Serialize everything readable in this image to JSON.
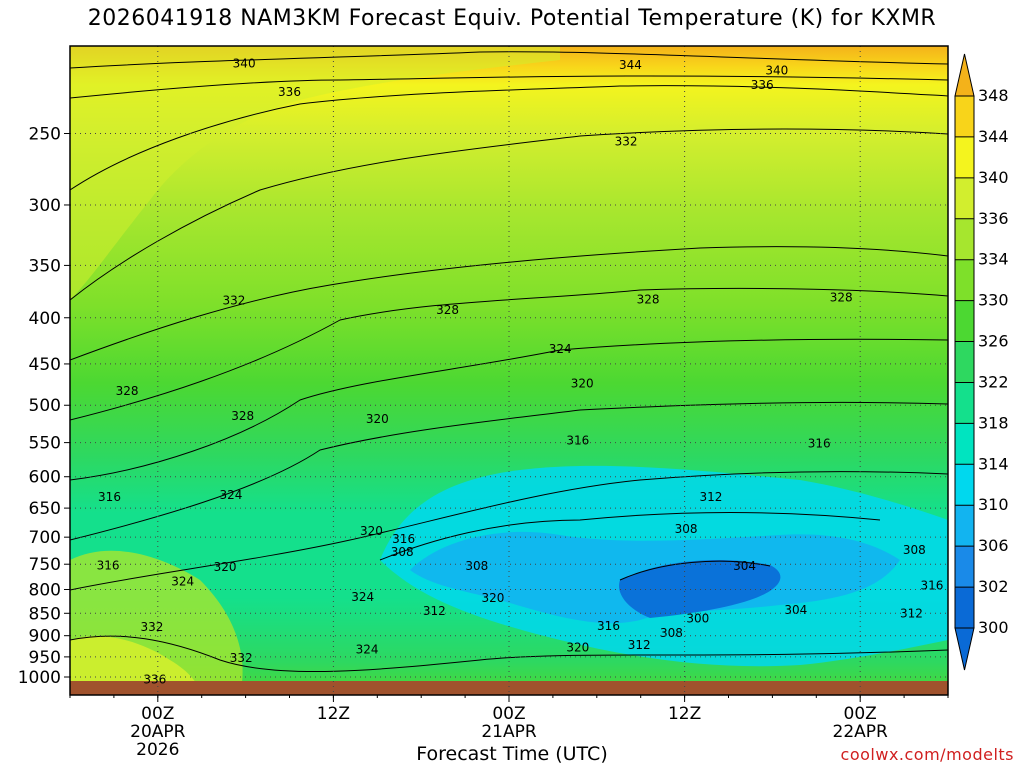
{
  "title": "2026041918 NAM3KM Forecast Equiv. Potential Temperature (K) for KXMR",
  "xlabel": "Forecast Time (UTC)",
  "credit": "coolwx.com/modelts",
  "colors": {
    "ground": "#a0522d",
    "contour_line": "#000000",
    "grid": "#444444"
  },
  "chart_data": {
    "type": "heatmap",
    "title": "2026041918 NAM3KM Forecast Equiv. Potential Temperature (K) for KXMR",
    "xlabel": "Forecast Time (UTC)",
    "ylabel": "",
    "ylim": [
      1000,
      200
    ],
    "y_scale": "log-pressure",
    "grid": true,
    "y_ticks": [
      250,
      300,
      350,
      400,
      450,
      500,
      550,
      600,
      650,
      700,
      750,
      800,
      850,
      900,
      950,
      1000
    ],
    "x_ticks": [
      {
        "hour": 6,
        "lines": [
          "00Z",
          "20APR",
          "2026"
        ]
      },
      {
        "hour": 18,
        "lines": [
          "12Z"
        ]
      },
      {
        "hour": 30,
        "lines": [
          "00Z",
          "21APR"
        ]
      },
      {
        "hour": 42,
        "lines": [
          "12Z"
        ]
      },
      {
        "hour": 54,
        "lines": [
          "00Z",
          "22APR"
        ]
      }
    ],
    "x_range_hours": [
      0,
      60
    ],
    "colorbar": {
      "levels": [
        300,
        302,
        306,
        310,
        314,
        318,
        322,
        326,
        330,
        334,
        336,
        340,
        344,
        348
      ],
      "labels": [
        "300",
        "302",
        "306",
        "310",
        "314",
        "318",
        "322",
        "326",
        "330",
        "334",
        "336",
        "340",
        "344",
        "348"
      ],
      "colors": [
        "#0a6ad6",
        "#1a8ae8",
        "#12b4f0",
        "#00d8ee",
        "#00e4c0",
        "#14e08c",
        "#2ed860",
        "#4cd832",
        "#7ee02a",
        "#a6e62e",
        "#d2ee2e",
        "#f4f41e",
        "#f8d41a",
        "#f4b21a"
      ]
    },
    "contour_labels": [
      {
        "text": "340",
        "hour": 11.9,
        "p": 209
      },
      {
        "text": "344",
        "hour": 38.3,
        "p": 210
      },
      {
        "text": "340",
        "hour": 48.3,
        "p": 213
      },
      {
        "text": "336",
        "hour": 15.0,
        "p": 225
      },
      {
        "text": "336",
        "hour": 47.3,
        "p": 221
      },
      {
        "text": "332",
        "hour": 38.0,
        "p": 255
      },
      {
        "text": "332",
        "hour": 11.2,
        "p": 383
      },
      {
        "text": "328",
        "hour": 25.8,
        "p": 392
      },
      {
        "text": "328",
        "hour": 39.5,
        "p": 382
      },
      {
        "text": "328",
        "hour": 52.7,
        "p": 380
      },
      {
        "text": "324",
        "hour": 33.5,
        "p": 433
      },
      {
        "text": "320",
        "hour": 35.0,
        "p": 473
      },
      {
        "text": "328",
        "hour": 3.9,
        "p": 482
      },
      {
        "text": "328",
        "hour": 11.8,
        "p": 514
      },
      {
        "text": "320",
        "hour": 21.0,
        "p": 518
      },
      {
        "text": "316",
        "hour": 34.7,
        "p": 547
      },
      {
        "text": "316",
        "hour": 51.2,
        "p": 551
      },
      {
        "text": "316",
        "hour": 2.7,
        "p": 632
      },
      {
        "text": "324",
        "hour": 11.0,
        "p": 629
      },
      {
        "text": "312",
        "hour": 43.8,
        "p": 632
      },
      {
        "text": "320",
        "hour": 20.6,
        "p": 689
      },
      {
        "text": "316",
        "hour": 22.8,
        "p": 703
      },
      {
        "text": "308",
        "hour": 42.1,
        "p": 686
      },
      {
        "text": "308",
        "hour": 22.7,
        "p": 727
      },
      {
        "text": "316",
        "hour": 2.6,
        "p": 752
      },
      {
        "text": "320",
        "hour": 10.6,
        "p": 755
      },
      {
        "text": "308",
        "hour": 27.8,
        "p": 753
      },
      {
        "text": "304",
        "hour": 46.1,
        "p": 753
      },
      {
        "text": "308",
        "hour": 57.7,
        "p": 723
      },
      {
        "text": "324",
        "hour": 7.7,
        "p": 784
      },
      {
        "text": "316",
        "hour": 58.9,
        "p": 792
      },
      {
        "text": "324",
        "hour": 20.0,
        "p": 815
      },
      {
        "text": "320",
        "hour": 28.9,
        "p": 818
      },
      {
        "text": "312",
        "hour": 24.9,
        "p": 845
      },
      {
        "text": "304",
        "hour": 49.6,
        "p": 843
      },
      {
        "text": "312",
        "hour": 57.5,
        "p": 850
      },
      {
        "text": "300",
        "hour": 42.9,
        "p": 861
      },
      {
        "text": "332",
        "hour": 5.6,
        "p": 880
      },
      {
        "text": "316",
        "hour": 36.8,
        "p": 878
      },
      {
        "text": "308",
        "hour": 41.1,
        "p": 894
      },
      {
        "text": "312",
        "hour": 38.9,
        "p": 922
      },
      {
        "text": "324",
        "hour": 20.3,
        "p": 932
      },
      {
        "text": "320",
        "hour": 34.7,
        "p": 928
      },
      {
        "text": "332",
        "hour": 11.7,
        "p": 953
      },
      {
        "text": "336",
        "hour": 5.8,
        "p": 1007
      }
    ]
  }
}
